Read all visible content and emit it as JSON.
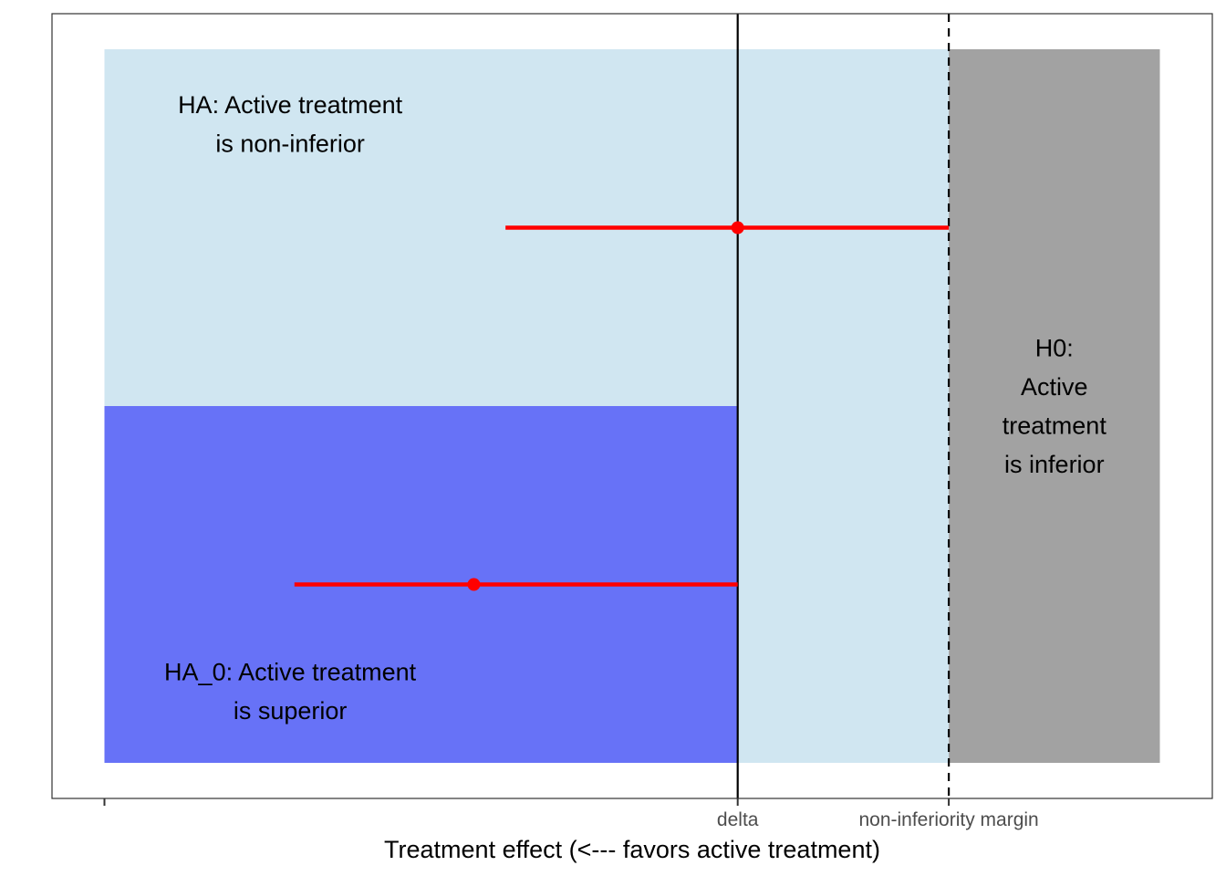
{
  "chart_data": {
    "type": "other",
    "title": "",
    "xlabel": "Treatment effect (<--- favors active treatment)",
    "ylabel": "",
    "x_ticks": [
      {
        "value": 0,
        "label": ""
      },
      {
        "value": 3,
        "label": "delta"
      },
      {
        "value": 4,
        "label": "non-inferiority margin"
      }
    ],
    "xlim": [
      0,
      5
    ],
    "ylim": [
      0,
      2
    ],
    "regions": [
      {
        "name": "HA",
        "x": [
          0,
          4
        ],
        "y": [
          0,
          2
        ],
        "color": "#d0e6f1",
        "label_lines": [
          "HA: Active treatment",
          "is non-inferior"
        ]
      },
      {
        "name": "HA_0",
        "x": [
          0,
          3
        ],
        "y": [
          0,
          1
        ],
        "color": "#6772f7",
        "label_lines": [
          "HA_0: Active treatment",
          "is superior"
        ]
      },
      {
        "name": "H0",
        "x": [
          4,
          5
        ],
        "y": [
          0,
          2
        ],
        "color": "#a2a2a2",
        "label_lines": [
          "H0:",
          "Active",
          "treatment",
          "is inferior"
        ]
      }
    ],
    "vlines": [
      {
        "x": 3,
        "style": "solid"
      },
      {
        "x": 4,
        "style": "dashed"
      }
    ],
    "intervals": [
      {
        "y": 1.5,
        "estimate": 3.0,
        "lower": 1.9,
        "upper": 4.0,
        "color": "#ff0000"
      },
      {
        "y": 0.5,
        "estimate": 1.75,
        "lower": 0.9,
        "upper": 3.0,
        "color": "#ff0000"
      }
    ]
  }
}
